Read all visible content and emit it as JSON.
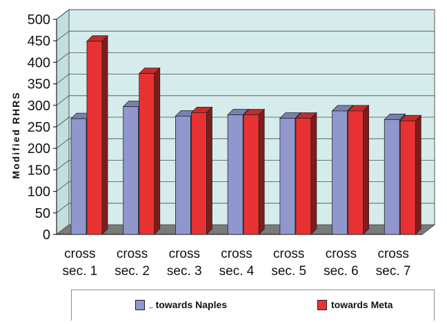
{
  "chart_data": {
    "type": "bar",
    "ylabel": "Modified RHRS",
    "xlabel": "",
    "ylim": [
      0,
      500
    ],
    "yticks": [
      0,
      50,
      100,
      150,
      200,
      250,
      300,
      350,
      400,
      450,
      500
    ],
    "categories": [
      [
        "cross",
        "sec. 1"
      ],
      [
        "cross",
        "sec. 2"
      ],
      [
        "cross",
        "sec. 3"
      ],
      [
        "cross",
        "sec. 4"
      ],
      [
        "cross",
        "sec. 5"
      ],
      [
        "cross",
        "sec. 6"
      ],
      [
        "cross",
        "sec. 7"
      ]
    ],
    "series": [
      {
        "name": "towards Naples",
        "color": "#8f97cc",
        "values": [
          269,
          297,
          275,
          278,
          270,
          287,
          267
        ]
      },
      {
        "name": "towards Meta",
        "color": "#e83232",
        "values": [
          449,
          374,
          283,
          278,
          270,
          287,
          264
        ]
      }
    ],
    "legend_position": "bottom",
    "grid": true,
    "plot_background": "#d6ecec",
    "floor_color": "#7a7a7a"
  },
  "legend": {
    "naples_prefix": "_",
    "naples_label": "towards Naples",
    "meta_label": "towards Meta"
  }
}
